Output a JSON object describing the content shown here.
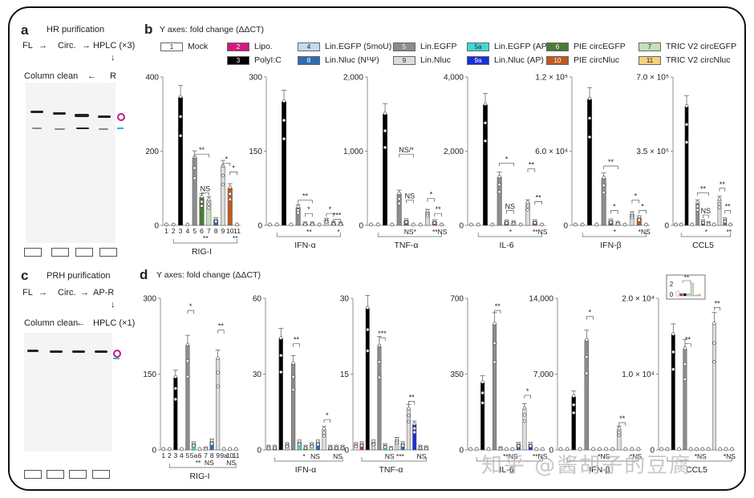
{
  "panels": {
    "a": {
      "letter": "a",
      "title": "HR purification",
      "step1": "FL",
      "step2": "Circ.",
      "step3": "HPLC (×3)",
      "step4": "R",
      "step5": "Column clean"
    },
    "b": {
      "letter": "b",
      "subtitle": "Y axes: fold change (ΔΔCT)"
    },
    "c": {
      "letter": "c",
      "title": "PRH purification",
      "step1": "FL",
      "step2": "Circ.",
      "step3": "AP-R",
      "step4": "HPLC (×1)",
      "step5": "Column clean"
    },
    "d": {
      "letter": "d",
      "subtitle": "Y axes: fold change (ΔΔCT)"
    }
  },
  "gel_swatch_colors": [
    "#4a7a35",
    "#c5dfb8",
    "#c05a1e",
    "#f5d27a"
  ],
  "markers": {
    "circle_color": "#c0198c",
    "dash_color": "#2ab4d8"
  },
  "legend": [
    {
      "id": "1",
      "label": "Mock",
      "color": "#ffffff"
    },
    {
      "id": "2",
      "label": "Lipo.",
      "color": "#d4187f"
    },
    {
      "id": "3",
      "label": "PolyI:C",
      "color": "#000000"
    },
    {
      "id": "4",
      "label": "Lin.EGFP (5moU)",
      "color": "#c5daef"
    },
    {
      "id": "8",
      "label": "Lin.Nluc (N¹Ψ)",
      "color": "#2d6cb5"
    },
    {
      "id": "5",
      "label": "Lin.EGFP",
      "color": "#8c8c8c"
    },
    {
      "id": "9",
      "label": "Lin.Nluc",
      "color": "#dcdcdc"
    },
    {
      "id": "5a",
      "label": "Lin.EGFP (AP)",
      "color": "#3fd7d7"
    },
    {
      "id": "9a",
      "label": "Lin.Nluc (AP)",
      "color": "#1a2fd6"
    },
    {
      "id": "6",
      "label": "PIE circEGFP",
      "color": "#4a7a35"
    },
    {
      "id": "10",
      "label": "PIE circNluc",
      "color": "#c05a1e"
    },
    {
      "id": "7",
      "label": "TRIC V2 circEGFP",
      "color": "#c5dfb8"
    },
    {
      "id": "11",
      "label": "TRIC V2 circNluc",
      "color": "#f5d27a"
    }
  ],
  "chart_data": [
    {
      "type": "bar",
      "panel": "b",
      "title": "RIG-I",
      "ylabel": "fold change (ΔΔCT)",
      "categories": [
        "1",
        "2",
        "3",
        "4",
        "5",
        "6",
        "7",
        "8",
        "9",
        "10",
        "11"
      ],
      "values": [
        1,
        1,
        345,
        2,
        182,
        75,
        67,
        15,
        158,
        100,
        2
      ],
      "ylim": [
        0,
        400
      ],
      "yticks": [
        "0",
        "200",
        "400"
      ],
      "ytick_values": [
        0,
        200,
        400
      ],
      "show_category_labels": true,
      "brackets": [
        {
          "from": 4,
          "to": 6,
          "label": "**",
          "level": 0.48
        },
        {
          "from": 5,
          "to": 6,
          "label": "NS",
          "level": 0.22
        },
        {
          "from": 8,
          "to": 9,
          "label": "*",
          "level": 0.42
        },
        {
          "from": 9,
          "to": 10,
          "label": "*",
          "level": 0.36
        }
      ],
      "bottom_labels": [
        "**",
        "**"
      ]
    },
    {
      "type": "bar",
      "panel": "b",
      "title": "IFN-α",
      "categories": [
        "1",
        "2",
        "3",
        "4",
        "5",
        "6",
        "7",
        "8",
        "9",
        "10",
        "11"
      ],
      "values": [
        1,
        1,
        250,
        1,
        36,
        3,
        3,
        1,
        10,
        4,
        3
      ],
      "ylim": [
        0,
        300
      ],
      "yticks": [
        "0",
        "150",
        "300"
      ],
      "ytick_values": [
        0,
        150,
        300
      ],
      "brackets": [
        {
          "from": 4,
          "to": 6,
          "label": "**",
          "level": 0.17
        },
        {
          "from": 5,
          "to": 6,
          "label": "*",
          "level": 0.08
        },
        {
          "from": 8,
          "to": 9,
          "label": "*",
          "level": 0.08
        },
        {
          "from": 9,
          "to": 10,
          "label": "***",
          "level": 0.04
        }
      ],
      "bottom_labels": [
        "**",
        "*"
      ]
    },
    {
      "type": "bar",
      "panel": "b",
      "title": "TNF-α",
      "categories": [
        "1",
        "2",
        "3",
        "4",
        "5",
        "6",
        "7",
        "8",
        "9",
        "10",
        "11"
      ],
      "values": [
        1,
        1,
        1500,
        1,
        420,
        60,
        5,
        3,
        180,
        50,
        5
      ],
      "ylim": [
        0,
        2000
      ],
      "yticks": [
        "0",
        "1,000",
        "2,000"
      ],
      "ytick_values": [
        0,
        1000,
        2000
      ],
      "brackets": [
        {
          "from": 4,
          "to": 6,
          "label": "NS/*",
          "level": 0.48
        },
        {
          "from": 5,
          "to": 6,
          "label": "NS",
          "level": 0.17
        },
        {
          "from": 8,
          "to": 9,
          "label": "*",
          "level": 0.18
        },
        {
          "from": 9,
          "to": 10,
          "label": "**",
          "level": 0.08
        }
      ],
      "bottom_labels": [
        "NS*",
        "**NS"
      ]
    },
    {
      "type": "bar",
      "panel": "b",
      "title": "IL-6",
      "categories": [
        "1",
        "2",
        "3",
        "4",
        "5",
        "6",
        "7",
        "8",
        "9",
        "10",
        "11"
      ],
      "values": [
        1,
        1,
        3250,
        1,
        1290,
        90,
        70,
        2,
        600,
        100,
        5
      ],
      "ylim": [
        0,
        4000
      ],
      "yticks": [
        "0",
        "2,000",
        "4,000"
      ],
      "ytick_values": [
        0,
        2000,
        4000
      ],
      "brackets": [
        {
          "from": 4,
          "to": 6,
          "label": "*",
          "level": 0.42
        },
        {
          "from": 5,
          "to": 6,
          "label": "NS",
          "level": 0.1
        },
        {
          "from": 8,
          "to": 9,
          "label": "**",
          "level": 0.38
        },
        {
          "from": 9,
          "to": 10,
          "label": "**",
          "level": 0.16
        }
      ],
      "bottom_labels": [
        "*",
        "**NS"
      ]
    },
    {
      "type": "bar",
      "panel": "b",
      "title": "IFN-β",
      "categories": [
        "1",
        "2",
        "3",
        "4",
        "5",
        "6",
        "7",
        "8",
        "9",
        "10",
        "11"
      ],
      "values": [
        1,
        1,
        102000,
        1,
        38000,
        3500,
        1500,
        1,
        9000,
        6000,
        1
      ],
      "ylim": [
        0,
        120000
      ],
      "yticks": [
        "0",
        "6.0 × 10⁴",
        "1.2 × 10⁵"
      ],
      "ytick_values": [
        0,
        60000,
        120000
      ],
      "brackets": [
        {
          "from": 4,
          "to": 6,
          "label": "**",
          "level": 0.4
        },
        {
          "from": 5,
          "to": 6,
          "label": "*",
          "level": 0.1
        },
        {
          "from": 8,
          "to": 9,
          "label": "*",
          "level": 0.17
        },
        {
          "from": 9,
          "to": 10,
          "label": "*",
          "level": 0.1
        }
      ],
      "bottom_labels": [
        "*",
        "*NS"
      ]
    },
    {
      "type": "bar",
      "panel": "b",
      "title": "CCL5",
      "categories": [
        "1",
        "2",
        "3",
        "4",
        "5",
        "6",
        "7",
        "8",
        "9",
        "10",
        "11"
      ],
      "values": [
        1,
        1,
        560000,
        1,
        105000,
        18000,
        8000,
        1,
        120000,
        25000,
        2
      ],
      "ylim": [
        0,
        700000
      ],
      "yticks": [
        "0",
        "3.5 × 10⁵",
        "7.0 × 10⁵"
      ],
      "ytick_values": [
        0,
        350000,
        700000
      ],
      "brackets": [
        {
          "from": 4,
          "to": 6,
          "label": "**",
          "level": 0.22
        },
        {
          "from": 5,
          "to": 6,
          "label": "NS",
          "level": 0.07
        },
        {
          "from": 8,
          "to": 9,
          "label": "**",
          "level": 0.25
        },
        {
          "from": 9,
          "to": 10,
          "label": "**",
          "level": 0.1
        }
      ],
      "bottom_labels": [
        "*",
        "**"
      ]
    },
    {
      "type": "bar",
      "panel": "d",
      "title": "RIG-I",
      "categories": [
        "1",
        "2",
        "3",
        "4",
        "5",
        "5a",
        "6",
        "7",
        "8",
        "9",
        "9a",
        "10",
        "11"
      ],
      "values": [
        1,
        1,
        143,
        1,
        207,
        12,
        1,
        2,
        17,
        180,
        1,
        1,
        1
      ],
      "ylim": [
        0,
        300
      ],
      "yticks": [
        "0",
        "150",
        "300"
      ],
      "ytick_values": [
        0,
        150,
        300
      ],
      "show_category_labels": true,
      "brackets": [
        {
          "from": 4,
          "to": 5,
          "label": "*",
          "level": 0.92
        },
        {
          "from": 9,
          "to": 10,
          "label": "**",
          "level": 0.79
        }
      ],
      "bottom_labels": [
        "**",
        "NS",
        "NS"
      ]
    },
    {
      "type": "bar",
      "panel": "d",
      "title": "IFN-α",
      "categories": [
        "1",
        "2",
        "3",
        "4",
        "5",
        "5a",
        "6",
        "7",
        "8",
        "9",
        "9a",
        "10",
        "11"
      ],
      "values": [
        1,
        1,
        44,
        2,
        34,
        3,
        1,
        2,
        3,
        8,
        1,
        1,
        1
      ],
      "ylim": [
        0,
        60
      ],
      "yticks": [
        "0",
        "30",
        "60"
      ],
      "ytick_values": [
        0,
        30,
        60
      ],
      "brackets": [
        {
          "from": 4,
          "to": 5,
          "label": "**",
          "level": 0.7
        },
        {
          "from": 9,
          "to": 10,
          "label": "*",
          "level": 0.2
        }
      ],
      "bottom_labels": [
        "*",
        "NS",
        "NS"
      ]
    },
    {
      "type": "bar",
      "panel": "d",
      "title": "TNF-α",
      "categories": [
        "1",
        "2",
        "3",
        "4",
        "5",
        "5a",
        "6",
        "7",
        "8",
        "9",
        "9a",
        "10",
        "11"
      ],
      "values": [
        1,
        1.2,
        28,
        1.5,
        20.5,
        0.8,
        0.3,
        2,
        1.2,
        8,
        5,
        0.5,
        0.4
      ],
      "ylim": [
        0,
        30
      ],
      "yticks": [
        "0",
        "15",
        "30"
      ],
      "ytick_values": [
        0,
        15,
        30
      ],
      "brackets": [
        {
          "from": 4,
          "to": 5,
          "label": "***",
          "level": 0.74
        },
        {
          "from": 9,
          "to": 10,
          "label": "**",
          "level": 0.32
        }
      ],
      "bottom_labels": [
        "NS",
        "***",
        "NS"
      ]
    },
    {
      "type": "bar",
      "panel": "d",
      "title": "IL-6",
      "categories": [
        "1",
        "2",
        "3",
        "4",
        "5",
        "5a",
        "6",
        "7",
        "8",
        "9",
        "9a",
        "10",
        "11"
      ],
      "values": [
        1,
        1,
        310,
        1,
        580,
        5,
        1,
        1,
        25,
        190,
        25,
        1,
        1
      ],
      "ylim": [
        0,
        700
      ],
      "yticks": [
        "0",
        "350",
        "700"
      ],
      "ytick_values": [
        0,
        350,
        700
      ],
      "brackets": [
        {
          "from": 4,
          "to": 5,
          "label": "**",
          "level": 0.92
        },
        {
          "from": 9,
          "to": 10,
          "label": "*",
          "level": 0.36
        }
      ],
      "bottom_labels": [
        "**NS",
        "**NS"
      ]
    },
    {
      "type": "bar",
      "panel": "d",
      "title": "IFN-β",
      "categories": [
        "1",
        "2",
        "3",
        "4",
        "5",
        "5a",
        "6",
        "7",
        "8",
        "9",
        "9a",
        "10",
        "11"
      ],
      "values": [
        1,
        1,
        4900,
        1,
        10100,
        1,
        1,
        1,
        1,
        1900,
        1,
        1,
        1
      ],
      "ylim": [
        0,
        14000
      ],
      "yticks": [
        "0",
        "7,000",
        "14,000"
      ],
      "ytick_values": [
        0,
        7000,
        14000
      ],
      "brackets": [
        {
          "from": 4,
          "to": 5,
          "label": "*",
          "level": 0.88
        },
        {
          "from": 9,
          "to": 10,
          "label": "**",
          "level": 0.18
        }
      ],
      "bottom_labels": [
        "*NS",
        "*NS"
      ]
    },
    {
      "type": "bar",
      "panel": "d",
      "title": "CCL5",
      "categories": [
        "1",
        "2",
        "3",
        "4",
        "5",
        "5a",
        "6",
        "7",
        "8",
        "9",
        "9a",
        "10",
        "11"
      ],
      "values": [
        1,
        1,
        15200,
        1,
        13300,
        1,
        1,
        1,
        1,
        16600,
        1,
        1,
        1
      ],
      "ylim": [
        0,
        20000
      ],
      "yticks": [
        "0",
        "1.0 × 10⁴",
        "2.0 × 10⁴"
      ],
      "ytick_values": [
        0,
        10000,
        20000
      ],
      "brackets": [
        {
          "from": 4,
          "to": 5,
          "label": "**",
          "level": 0.7
        },
        {
          "from": 9,
          "to": 10,
          "label": "**",
          "level": 0.94
        }
      ],
      "bottom_labels": [
        "*NS",
        "*NS"
      ],
      "inset": {
        "yticks": [
          "0",
          "2"
        ],
        "label": "**"
      }
    }
  ],
  "watermark": "知乎 @酱胡子的豆腐"
}
